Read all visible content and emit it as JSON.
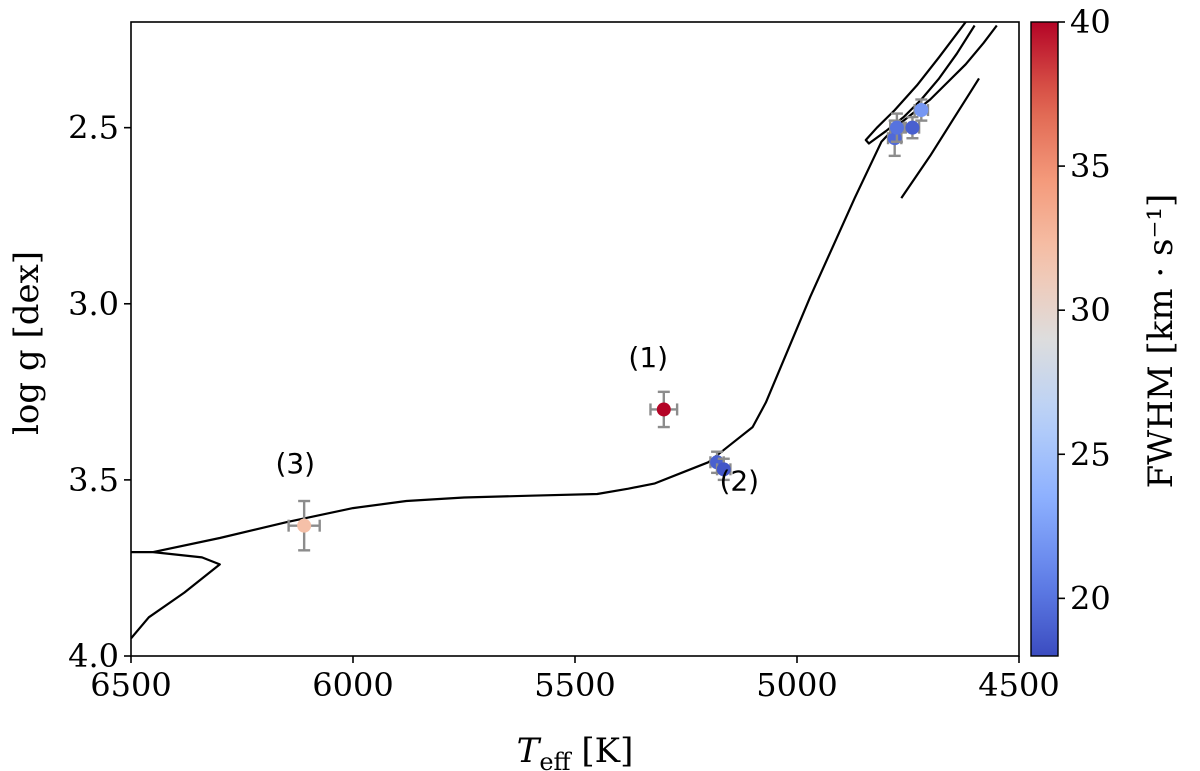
{
  "chart_data": {
    "type": "scatter",
    "xlabel": "T_eff [K]",
    "xlabel_main": "T",
    "xlabel_sub": "eff",
    "xlabel_unit": " [K]",
    "ylabel": "log g [dex]",
    "xlim": [
      6500,
      4500
    ],
    "ylim": [
      4.0,
      2.2
    ],
    "x_inverted": true,
    "y_inverted": true,
    "xticks": [
      6500,
      6000,
      5500,
      5000,
      4500
    ],
    "xtick_labels": [
      "6500",
      "6000",
      "5500",
      "5000",
      "4500"
    ],
    "yticks": [
      2.5,
      3.0,
      3.5,
      4.0
    ],
    "ytick_labels": [
      "2.5",
      "3.0",
      "3.5",
      "4.0"
    ],
    "grid": false,
    "colorbar": {
      "label": "FWHM [km · s⁻¹]",
      "min": 18,
      "max": 40,
      "colormap": "coolwarm",
      "ticks": [
        20,
        25,
        30,
        35,
        40
      ],
      "tick_labels": [
        "20",
        "25",
        "30",
        "35",
        "40"
      ]
    },
    "isochrone": [
      [
        6500,
        3.95
      ],
      [
        6460,
        3.89
      ],
      [
        6380,
        3.82
      ],
      [
        6300,
        3.74
      ],
      [
        6340,
        3.72
      ],
      [
        6450,
        3.705
      ],
      [
        6500,
        3.705
      ]
    ],
    "isochrone_main": [
      [
        6450,
        3.705
      ],
      [
        6300,
        3.665
      ],
      [
        6150,
        3.62
      ],
      [
        6000,
        3.58
      ],
      [
        5880,
        3.56
      ],
      [
        5750,
        3.55
      ],
      [
        5600,
        3.545
      ],
      [
        5450,
        3.54
      ],
      [
        5380,
        3.525
      ],
      [
        5320,
        3.51
      ],
      [
        5260,
        3.48
      ],
      [
        5200,
        3.45
      ],
      [
        5150,
        3.4
      ],
      [
        5100,
        3.35
      ],
      [
        5070,
        3.28
      ],
      [
        5020,
        3.13
      ],
      [
        4970,
        2.98
      ],
      [
        4920,
        2.84
      ],
      [
        4870,
        2.7
      ],
      [
        4810,
        2.54
      ],
      [
        4780,
        2.5
      ],
      [
        4740,
        2.46
      ],
      [
        4700,
        2.42
      ],
      [
        4660,
        2.37
      ],
      [
        4620,
        2.32
      ],
      [
        4580,
        2.26
      ],
      [
        4550,
        2.21
      ]
    ],
    "isochrone_loop": [
      [
        4620,
        2.2
      ],
      [
        4680,
        2.3
      ],
      [
        4730,
        2.38
      ],
      [
        4780,
        2.45
      ],
      [
        4820,
        2.5
      ],
      [
        4845,
        2.535
      ],
      [
        4838,
        2.545
      ],
      [
        4800,
        2.51
      ],
      [
        4760,
        2.47
      ],
      [
        4720,
        2.42
      ],
      [
        4680,
        2.36
      ],
      [
        4640,
        2.29
      ],
      [
        4600,
        2.21
      ]
    ],
    "isochrone_branch": [
      [
        4765,
        2.7
      ],
      [
        4700,
        2.58
      ],
      [
        4650,
        2.48
      ],
      [
        4610,
        2.4
      ],
      [
        4590,
        2.36
      ]
    ],
    "points": [
      {
        "x": 5300,
        "y": 3.3,
        "xerr": 30,
        "yerr": 0.05,
        "fwhm": 40.0
      },
      {
        "x": 5180,
        "y": 3.45,
        "xerr": 15,
        "yerr": 0.03,
        "fwhm": 19.0
      },
      {
        "x": 5165,
        "y": 3.47,
        "xerr": 15,
        "yerr": 0.03,
        "fwhm": 18.5
      },
      {
        "x": 6110,
        "y": 3.63,
        "xerr": 35,
        "yerr": 0.07,
        "fwhm": 32.0
      },
      {
        "x": 4780,
        "y": 2.53,
        "xerr": 15,
        "yerr": 0.05,
        "fwhm": 19.5
      },
      {
        "x": 4775,
        "y": 2.5,
        "xerr": 15,
        "yerr": 0.04,
        "fwhm": 20.0
      },
      {
        "x": 4740,
        "y": 2.5,
        "xerr": 15,
        "yerr": 0.03,
        "fwhm": 19.0
      },
      {
        "x": 4720,
        "y": 2.45,
        "xerr": 15,
        "yerr": 0.03,
        "fwhm": 22.0
      }
    ],
    "annotations": [
      {
        "text": "(1)",
        "x": 5335,
        "y": 3.18
      },
      {
        "text": "(2)",
        "x": 5130,
        "y": 3.53
      },
      {
        "text": "(3)",
        "x": 6130,
        "y": 3.48
      }
    ]
  }
}
